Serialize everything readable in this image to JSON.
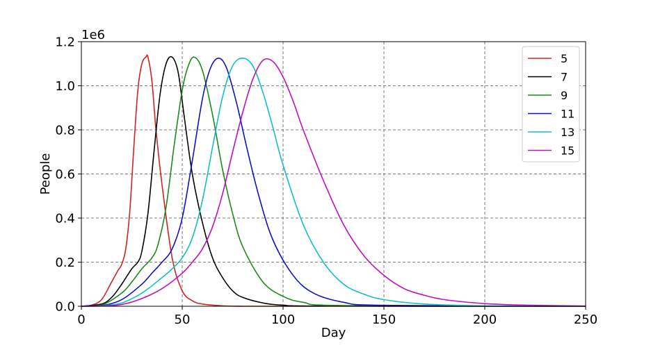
{
  "chart_data": {
    "type": "line",
    "xlabel": "Day",
    "ylabel": "People",
    "y_multiplier_label": "1e6",
    "xlim": [
      0,
      250
    ],
    "ylim": [
      0,
      1.2
    ],
    "x_ticks": [
      0,
      50,
      100,
      150,
      200,
      250
    ],
    "y_ticks": [
      0.0,
      0.2,
      0.4,
      0.6,
      0.8,
      1.0,
      1.2
    ],
    "x_tick_labels": [
      "0",
      "50",
      "100",
      "150",
      "200",
      "250"
    ],
    "y_tick_labels": [
      "0.0",
      "0.2",
      "0.4",
      "0.6",
      "0.8",
      "1.0",
      "1.2"
    ],
    "grid": true,
    "legend_position": "top-right",
    "series": [
      {
        "name": "5",
        "color": "#d62020",
        "x": [
          0,
          5,
          10,
          15,
          18,
          20,
          22,
          24,
          26,
          28,
          30,
          32,
          33,
          35,
          37,
          40,
          45,
          50,
          55,
          60,
          70,
          80,
          100,
          250
        ],
        "values": [
          0.0,
          0.005,
          0.03,
          0.11,
          0.16,
          0.19,
          0.26,
          0.43,
          0.72,
          0.98,
          1.1,
          1.13,
          1.13,
          1.02,
          0.8,
          0.55,
          0.22,
          0.07,
          0.025,
          0.01,
          0.002,
          0.0,
          0.0,
          0.0
        ]
      },
      {
        "name": "7",
        "color": "#000000",
        "x": [
          0,
          10,
          15,
          20,
          25,
          28,
          30,
          33,
          36,
          39,
          42,
          45,
          48,
          51,
          55,
          60,
          65,
          70,
          75,
          80,
          90,
          100,
          120,
          250
        ],
        "values": [
          0.0,
          0.01,
          0.04,
          0.1,
          0.17,
          0.2,
          0.25,
          0.42,
          0.7,
          0.96,
          1.1,
          1.13,
          1.06,
          0.86,
          0.6,
          0.38,
          0.22,
          0.13,
          0.07,
          0.04,
          0.015,
          0.005,
          0.001,
          0.0
        ]
      },
      {
        "name": "9",
        "color": "#1a8a1a",
        "x": [
          0,
          10,
          20,
          25,
          30,
          35,
          38,
          42,
          46,
          50,
          53,
          56,
          60,
          65,
          70,
          75,
          80,
          90,
          100,
          110,
          130,
          250
        ],
        "values": [
          0.0,
          0.005,
          0.06,
          0.11,
          0.17,
          0.22,
          0.28,
          0.45,
          0.73,
          0.98,
          1.09,
          1.13,
          1.07,
          0.87,
          0.62,
          0.42,
          0.27,
          0.11,
          0.045,
          0.018,
          0.003,
          0.0
        ]
      },
      {
        "name": "11",
        "color": "#1010c8",
        "x": [
          0,
          10,
          20,
          30,
          35,
          40,
          45,
          50,
          55,
          60,
          64,
          68,
          72,
          77,
          82,
          88,
          95,
          105,
          115,
          130,
          150,
          250
        ],
        "values": [
          0.0,
          0.003,
          0.03,
          0.1,
          0.15,
          0.2,
          0.26,
          0.4,
          0.66,
          0.94,
          1.08,
          1.125,
          1.08,
          0.92,
          0.72,
          0.5,
          0.3,
          0.14,
          0.06,
          0.018,
          0.004,
          0.0
        ]
      },
      {
        "name": "13",
        "color": "#10c0c0",
        "x": [
          0,
          10,
          20,
          30,
          40,
          45,
          50,
          55,
          60,
          65,
          70,
          75,
          80,
          85,
          90,
          95,
          100,
          110,
          120,
          130,
          140,
          150,
          170,
          200,
          250
        ],
        "values": [
          0.0,
          0.002,
          0.015,
          0.06,
          0.13,
          0.17,
          0.22,
          0.31,
          0.48,
          0.72,
          0.95,
          1.09,
          1.125,
          1.09,
          0.97,
          0.81,
          0.64,
          0.37,
          0.2,
          0.1,
          0.055,
          0.03,
          0.01,
          0.002,
          0.0
        ]
      },
      {
        "name": "15",
        "color": "#c010c0",
        "x": [
          0,
          10,
          20,
          30,
          40,
          50,
          55,
          60,
          65,
          70,
          75,
          80,
          85,
          90,
          95,
          100,
          105,
          110,
          120,
          130,
          140,
          150,
          160,
          170,
          180,
          200,
          220,
          250
        ],
        "values": [
          0.0,
          0.001,
          0.008,
          0.035,
          0.08,
          0.15,
          0.2,
          0.26,
          0.36,
          0.51,
          0.7,
          0.88,
          1.03,
          1.115,
          1.11,
          1.04,
          0.93,
          0.8,
          0.57,
          0.37,
          0.23,
          0.14,
          0.08,
          0.05,
          0.03,
          0.012,
          0.005,
          0.001
        ]
      }
    ]
  }
}
